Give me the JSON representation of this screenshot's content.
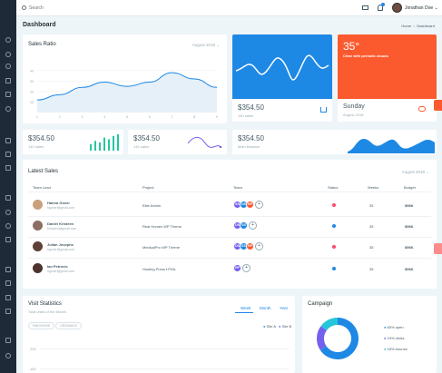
{
  "search": {
    "placeholder": "Search"
  },
  "user": {
    "name": "Jonathan Doe",
    "dropdown_icon": "chevron-down-icon"
  },
  "header": {
    "title": "Dashboard",
    "breadcrumb": [
      "Home",
      "Dashboard"
    ]
  },
  "sales_ratio": {
    "title": "Sales Ratio",
    "period": "August 2018",
    "chart_data": {
      "type": "area",
      "x": [
        1,
        2,
        3,
        4,
        5,
        6,
        7,
        8,
        9
      ],
      "ticks_x": [
        "1",
        "2",
        "3",
        "4",
        "5",
        "6",
        "7",
        "8",
        "9"
      ],
      "ticks_y": [
        "40",
        "30",
        "20",
        "10"
      ],
      "series": [
        {
          "values": [
            12,
            17,
            24,
            29,
            25,
            29,
            38,
            32,
            24
          ]
        }
      ],
      "ylim": [
        0,
        45
      ],
      "grid": true
    }
  },
  "blue_tile": {
    "value": "$354.50",
    "label": "140 sales",
    "icon": "cart-icon"
  },
  "weather_tile": {
    "temp": "35°",
    "desc": "Clear with periodic clouds",
    "day": "Sunday",
    "date": "August 2018",
    "icon": "weather-icon"
  },
  "mini_cards": [
    {
      "value": "$354.50",
      "label": "140 sales"
    },
    {
      "value": "$354.50",
      "label": "140 sales"
    },
    {
      "value": "$354.50",
      "label": "Main Balance"
    }
  ],
  "mini_bars": {
    "values": [
      4,
      6,
      5,
      8,
      7,
      9,
      10
    ]
  },
  "latest_sales": {
    "title": "Latest Sales",
    "period": "August 2018",
    "columns": [
      "Team Lead",
      "Project",
      "Team",
      "Status",
      "Weeks",
      "Budget"
    ],
    "rows": [
      {
        "name": "Hanna Gover",
        "email": "hgover@gmail.com",
        "project": "Elite Admin",
        "team": [
          "SS",
          "DS",
          "RP"
        ],
        "status_color": "#fc4b6c",
        "weeks": "35",
        "budget": "$96K"
      },
      {
        "name": "Daniel Kristeen",
        "email": "Kristeen@gmail.com",
        "project": "Real Homes WP Theme",
        "team": [
          "DS",
          "SS"
        ],
        "status_color": "#1e88e5",
        "weeks": "35",
        "budget": "$96K"
      },
      {
        "name": "Julian Josephs",
        "email": "hgover@gmail.com",
        "project": "MedicalPro WP Theme",
        "team": [
          "DS",
          "SS",
          "RP"
        ],
        "status_color": "#fc4b6c",
        "weeks": "35",
        "budget": "$96K"
      },
      {
        "name": "Ian Petrovic",
        "email": "hgover@gmail.com",
        "project": "Hosting Press HTML",
        "team": [
          "RP"
        ],
        "status_color": "#1e88e5",
        "weeks": "35",
        "budget": "$96K"
      }
    ]
  },
  "visit_stats": {
    "title": "Visit Statistics",
    "subtitle": "Total visits of the Month",
    "tabs": [
      "Week",
      "Month",
      "Year"
    ],
    "filters": [
      "PAIDVIEWS",
      "ORGANICS"
    ],
    "legend": [
      "Site A",
      "Site B"
    ],
    "y_ticks": [
      "200",
      "150"
    ]
  },
  "campaign": {
    "title": "Campaign",
    "chart_data": {
      "type": "pie",
      "slices": [
        {
          "label": "open",
          "value": 80,
          "color": "#1e88e5"
        },
        {
          "label": "clicks",
          "value": 24,
          "color": "#7460ee"
        },
        {
          "label": "bounce",
          "value": 18,
          "color": "#26c6da"
        }
      ]
    },
    "legend": [
      "80% open",
      "24% clicks",
      "18% bounce"
    ]
  },
  "colors": {
    "blue": "#1e88e5",
    "orange": "#fb5a2e",
    "green": "#21c1d6",
    "purple": "#7460ee",
    "red": "#fc4b6c"
  }
}
